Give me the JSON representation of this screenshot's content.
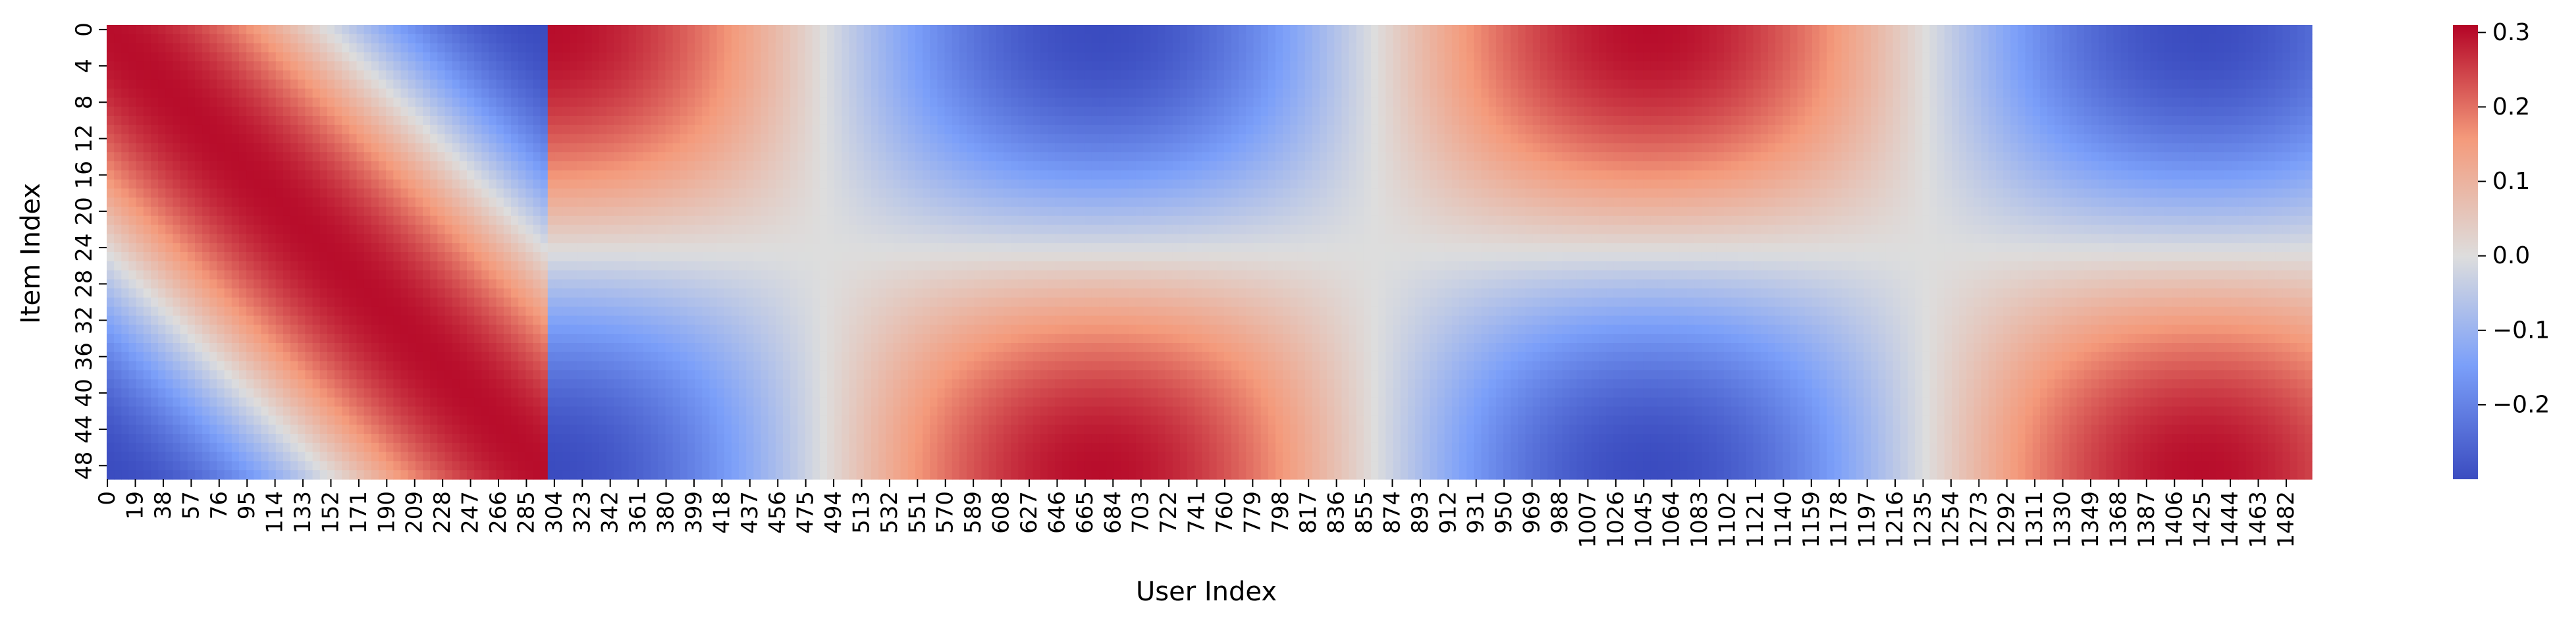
{
  "chart_data": {
    "type": "heatmap",
    "title": "",
    "xlabel": "User Index",
    "ylabel": "Item Index",
    "x_tick_labels": [
      "0",
      "19",
      "38",
      "57",
      "76",
      "95",
      "114",
      "133",
      "152",
      "171",
      "190",
      "209",
      "228",
      "247",
      "266",
      "285",
      "304",
      "323",
      "342",
      "361",
      "380",
      "399",
      "418",
      "437",
      "456",
      "475",
      "494",
      "513",
      "532",
      "551",
      "570",
      "589",
      "608",
      "627",
      "646",
      "665",
      "684",
      "703",
      "722",
      "741",
      "760",
      "779",
      "798",
      "817",
      "836",
      "855",
      "874",
      "893",
      "912",
      "931",
      "950",
      "969",
      "988",
      "1007",
      "1026",
      "1045",
      "1064",
      "1083",
      "1102",
      "1121",
      "1140",
      "1159",
      "1178",
      "1197",
      "1216",
      "1235",
      "1254",
      "1273",
      "1292",
      "1311",
      "1330",
      "1349",
      "1368",
      "1387",
      "1406",
      "1425",
      "1444",
      "1463",
      "1482"
    ],
    "y_tick_labels": [
      "0",
      "4",
      "8",
      "12",
      "16",
      "20",
      "24",
      "28",
      "32",
      "36",
      "40",
      "44",
      "48"
    ],
    "n_users": 1500,
    "n_items": 50,
    "colormap": "coolwarm",
    "colormap_stops": [
      "#3b4cc0",
      "#dddddd",
      "#b40426"
    ],
    "colorbar": {
      "vmin": -0.3,
      "vmax": 0.31,
      "ticks": [
        -0.2,
        -0.1,
        0.0,
        0.1,
        0.2,
        0.3
      ],
      "tick_labels": [
        "−0.2",
        "−0.1",
        "0.0",
        "0.1",
        "0.2",
        "0.3"
      ]
    },
    "values_description": "Approximate value(user u, item i): for u < 300, 0.3*cos(2*pi*(u - 300)/600 + pi*i/49 ... ) pattern; for u >= 300, 0.3*cos(2*pi*(u - 300)/750) * cos(pi*i/49)"
  }
}
